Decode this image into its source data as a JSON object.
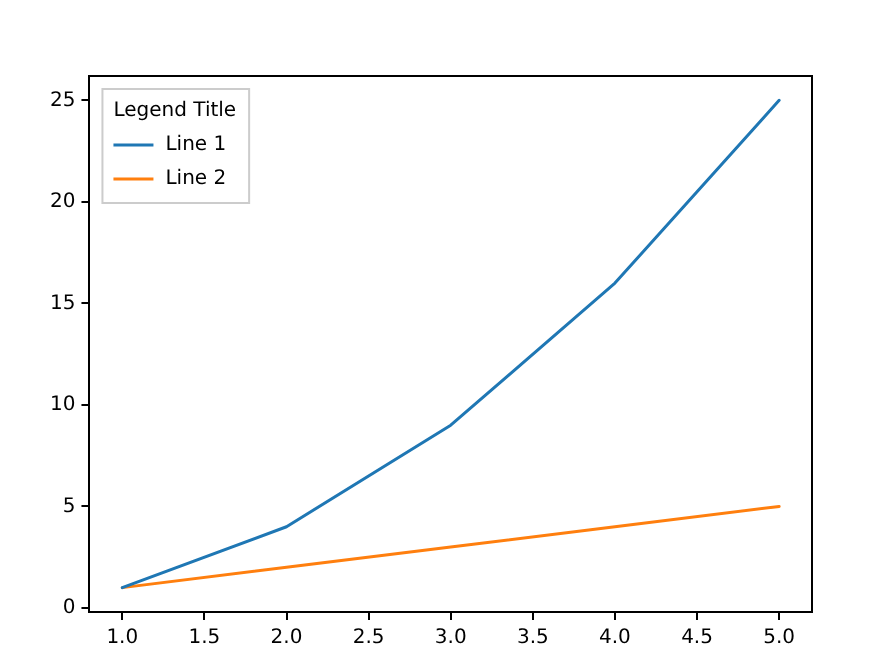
{
  "chart_data": {
    "type": "line",
    "legend_title": "Legend Title",
    "legend": "top left",
    "grid": false,
    "marker": "none",
    "line_style": "solid",
    "xlim": [
      0.8,
      5.2
    ],
    "ylim": [
      -0.2,
      26.2
    ],
    "xticks": [
      {
        "value": 1,
        "label": "1.0"
      },
      {
        "value": 1.5,
        "label": "1.5"
      },
      {
        "value": 2,
        "label": "2.0"
      },
      {
        "value": 2.5,
        "label": "2.5"
      },
      {
        "value": 3,
        "label": "3.0"
      },
      {
        "value": 3.5,
        "label": "3.5"
      },
      {
        "value": 4,
        "label": "4.0"
      },
      {
        "value": 4.5,
        "label": "4.5"
      },
      {
        "value": 5,
        "label": "5.0"
      }
    ],
    "yticks": [
      0,
      5,
      10,
      15,
      20,
      25
    ],
    "x": [
      1,
      2,
      3,
      4,
      5
    ],
    "series": [
      {
        "name": "Line 1",
        "color": "#1f77b4",
        "values": [
          1,
          4,
          9,
          16,
          25
        ]
      },
      {
        "name": "Line 2",
        "color": "#ff7f0e",
        "values": [
          1,
          2,
          3,
          4,
          5
        ]
      }
    ]
  }
}
